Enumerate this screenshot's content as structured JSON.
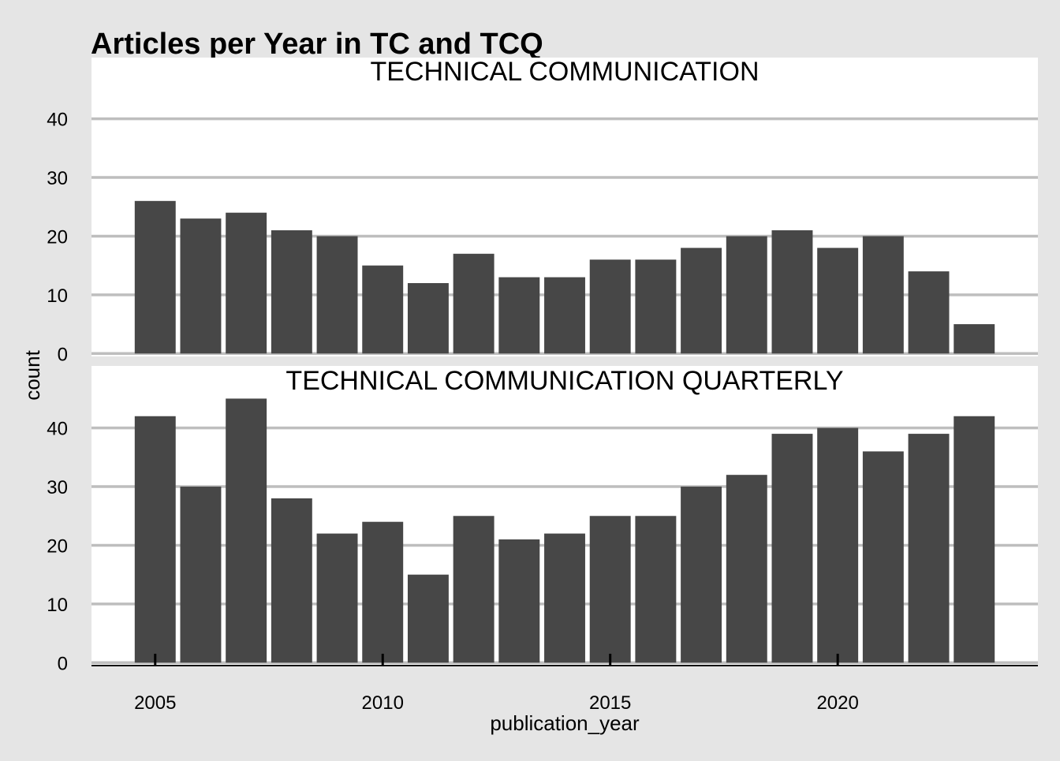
{
  "chart_data": {
    "type": "bar",
    "title": "Articles per Year in TC and TCQ",
    "xlabel": "publication_year",
    "ylabel": "count",
    "x_ticks": [
      2005,
      2010,
      2015,
      2020
    ],
    "xlim": [
      2003.6,
      2024.4
    ],
    "y_ticks": [
      0,
      10,
      20,
      30,
      40
    ],
    "grid": true,
    "colors": {
      "bar": "#474747",
      "panel": "#ffffff",
      "background": "#e5e5e5",
      "grid": "#bebebe",
      "text": "#000000"
    },
    "facets": [
      {
        "label": "TECHNICAL COMMUNICATION",
        "ylim": [
          -0.5,
          46
        ],
        "years": [
          2005,
          2006,
          2007,
          2008,
          2009,
          2010,
          2011,
          2012,
          2013,
          2014,
          2015,
          2016,
          2017,
          2018,
          2019,
          2020,
          2021,
          2022,
          2023
        ],
        "values": [
          26,
          23,
          24,
          21,
          20,
          15,
          12,
          17,
          13,
          13,
          16,
          16,
          18,
          20,
          21,
          18,
          20,
          14,
          5
        ]
      },
      {
        "label": "TECHNICAL COMMUNICATION QUARTERLY",
        "ylim": [
          -0.5,
          46
        ],
        "years": [
          2005,
          2006,
          2007,
          2008,
          2009,
          2010,
          2011,
          2012,
          2013,
          2014,
          2015,
          2016,
          2017,
          2018,
          2019,
          2020,
          2021,
          2022,
          2023
        ],
        "values": [
          42,
          30,
          45,
          28,
          22,
          24,
          15,
          25,
          21,
          22,
          25,
          25,
          30,
          32,
          39,
          40,
          36,
          39,
          42
        ]
      }
    ]
  }
}
